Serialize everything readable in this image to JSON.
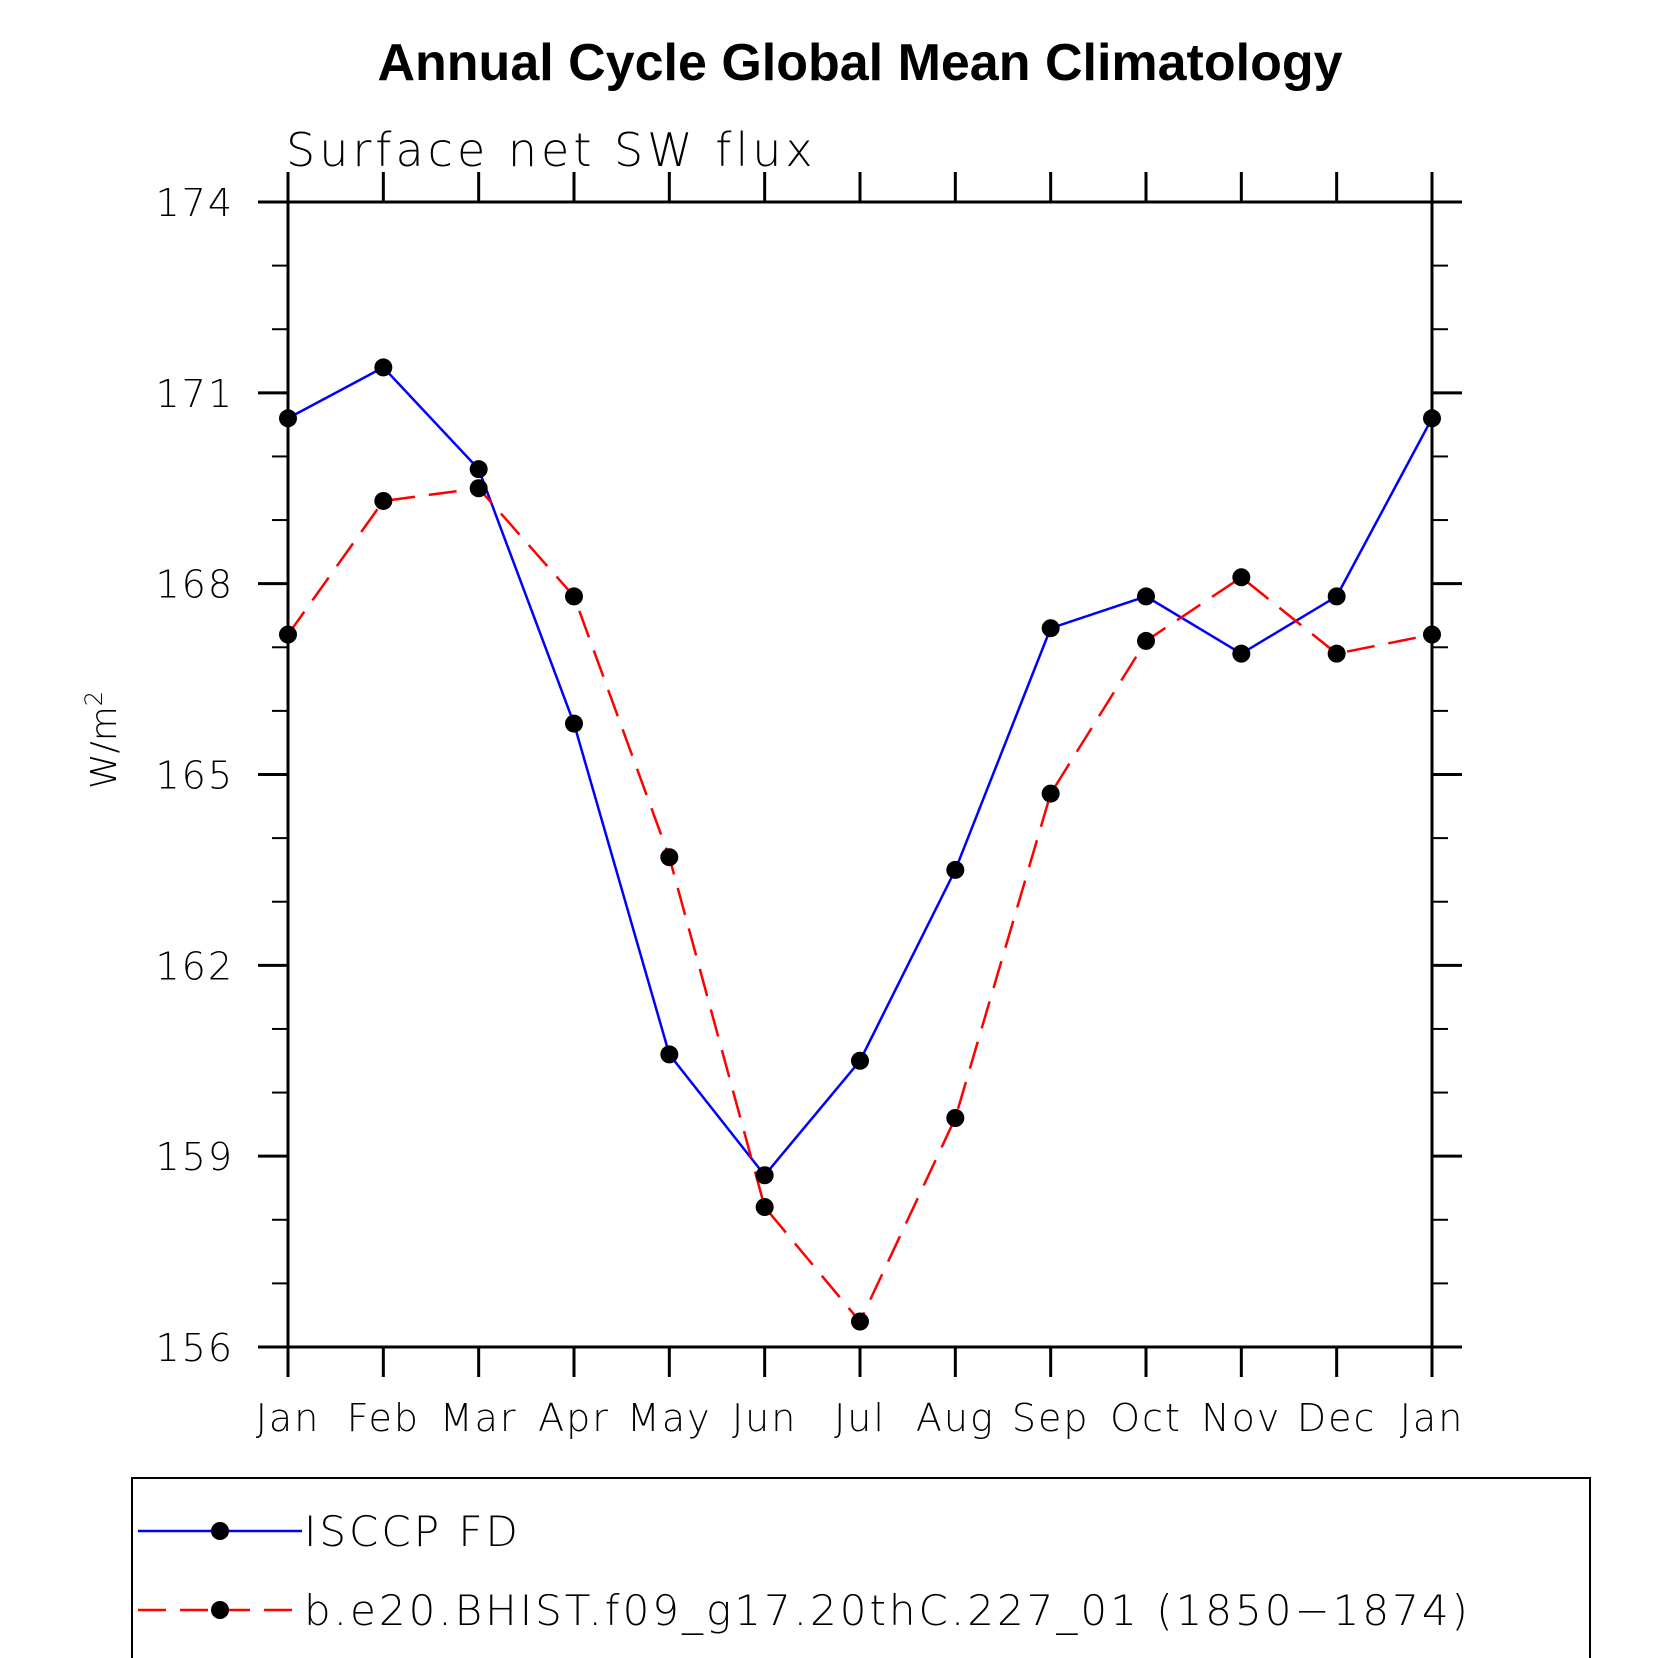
{
  "chart_data": {
    "type": "line",
    "title": "Annual Cycle Global Mean Climatology",
    "subtitle": "Surface net SW flux",
    "ylabel_base": "W/m",
    "ylabel_sup": "2",
    "xlabel": "",
    "categories": [
      "Jan",
      "Feb",
      "Mar",
      "Apr",
      "May",
      "Jun",
      "Jul",
      "Aug",
      "Sep",
      "Oct",
      "Nov",
      "Dec",
      "Jan"
    ],
    "ylim": [
      156,
      174
    ],
    "yticks": [
      156,
      159,
      162,
      165,
      168,
      171,
      174
    ],
    "grid": false,
    "legend_position": "bottom",
    "series": [
      {
        "name": "ISCCP FD",
        "color": "#0000ff",
        "dash": "solid",
        "values": [
          170.6,
          171.4,
          169.8,
          165.8,
          160.6,
          158.7,
          160.5,
          163.5,
          167.3,
          167.8,
          166.9,
          167.8,
          170.6
        ]
      },
      {
        "name": "b.e20.BHIST.f09_g17.20thC.227_01 (1850−1874)",
        "color": "#ff0000",
        "dash": "dashed",
        "values": [
          167.2,
          169.3,
          169.5,
          167.8,
          163.7,
          158.2,
          156.4,
          159.6,
          164.7,
          167.1,
          168.1,
          166.9,
          167.2
        ]
      }
    ]
  }
}
